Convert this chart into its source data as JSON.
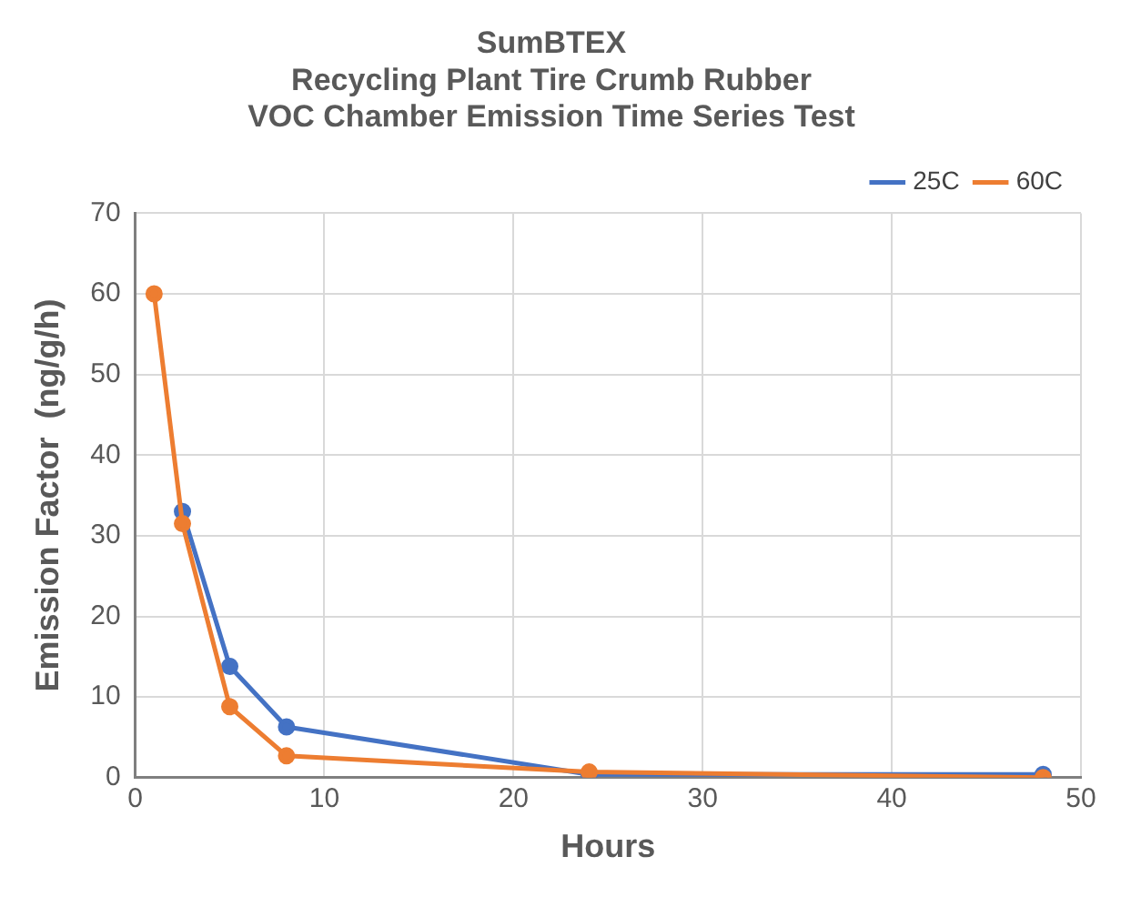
{
  "chart_data": {
    "type": "line",
    "title": [
      "SumBTEX",
      "Recycling Plant Tire Crumb Rubber",
      "VOC Chamber Emission Time Series Test"
    ],
    "xlabel": "Hours",
    "ylabel": "Emission Factor  (ng/g/h)",
    "series": [
      {
        "name": "25C",
        "color": "#4472c4",
        "x": [
          2.5,
          5,
          8,
          24,
          48
        ],
        "values": [
          33,
          13.8,
          6.3,
          0.4,
          0.4
        ]
      },
      {
        "name": "60C",
        "color": "#ed7d31",
        "x": [
          1,
          2.5,
          5,
          8,
          24,
          48
        ],
        "values": [
          60,
          31.5,
          8.8,
          2.7,
          0.7,
          0
        ]
      }
    ],
    "xlim": [
      0,
      50
    ],
    "xticks": [
      0,
      10,
      20,
      30,
      40,
      50
    ],
    "ylim": [
      0,
      70
    ],
    "yticks": [
      0,
      10,
      20,
      30,
      40,
      50,
      60,
      70
    ],
    "grid": true,
    "legend": "top right",
    "marker": "circle",
    "line_style": "solid"
  }
}
